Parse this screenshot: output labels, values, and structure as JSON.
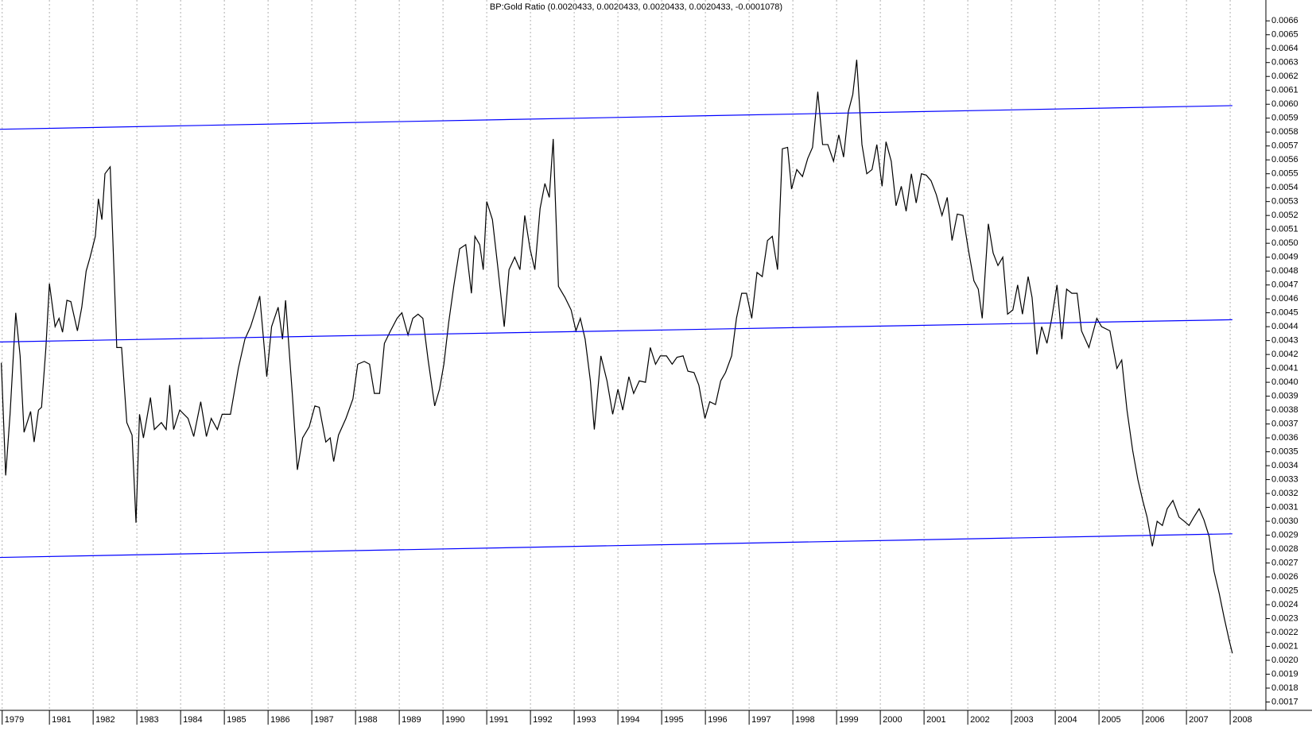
{
  "chart_data": {
    "type": "line",
    "title": "BP:Gold Ratio (0.0020433, 0.0020433, 0.0020433, 0.0020433, -0.0001078)",
    "xlim": [
      1979.87,
      2008.78
    ],
    "ylim": [
      0.00164,
      0.00675
    ],
    "grid": true,
    "xticks": [
      {
        "value": 1979.92,
        "label": "1979"
      },
      1981,
      1982,
      1983,
      1984,
      1985,
      1986,
      1987,
      1988,
      1989,
      1990,
      1991,
      1992,
      1993,
      1994,
      1995,
      1996,
      1997,
      1998,
      1999,
      2000,
      2001,
      2002,
      2003,
      2004,
      2005,
      2006,
      2007,
      2008
    ],
    "yticks": [
      0.0017,
      0.0018,
      0.0019,
      {
        "value": 0.002,
        "label": "0.0020"
      },
      0.0021,
      0.0022,
      0.0023,
      0.0024,
      0.0025,
      0.0026,
      0.0027,
      0.0028,
      0.0029,
      {
        "value": 0.003,
        "label": "0.0030"
      },
      0.0031,
      0.0032,
      0.0033,
      0.0034,
      0.0035,
      0.0036,
      0.0037,
      0.0038,
      0.0039,
      {
        "value": 0.004,
        "label": "0.0040"
      },
      0.0041,
      0.0042,
      0.0043,
      0.0044,
      0.0045,
      0.0046,
      0.0047,
      0.0048,
      0.0049,
      {
        "value": 0.005,
        "label": "0.0050"
      },
      0.0051,
      0.0052,
      0.0053,
      0.0054,
      0.0055,
      0.0056,
      0.0057,
      0.0058,
      0.0059,
      {
        "value": 0.006,
        "label": "0.0060"
      },
      0.0061,
      0.0062,
      0.0063,
      0.0064,
      0.0065,
      0.0066
    ],
    "series": [
      {
        "color": "#000000",
        "x": [
          1979.9,
          1980.0,
          1980.1,
          1980.23,
          1980.33,
          1980.42,
          1980.57,
          1980.65,
          1980.75,
          1980.82,
          1980.92,
          1981.0,
          1981.13,
          1981.22,
          1981.3,
          1981.4,
          1981.49,
          1981.64,
          1981.74,
          1981.84,
          1981.93,
          1982.05,
          1982.12,
          1982.2,
          1982.27,
          1982.39,
          1982.54,
          1982.65,
          1982.77,
          1982.89,
          1982.98,
          1983.06,
          1983.15,
          1983.31,
          1983.4,
          1983.56,
          1983.67,
          1983.75,
          1983.84,
          1983.98,
          1984.17,
          1984.3,
          1984.46,
          1984.59,
          1984.7,
          1984.84,
          1984.95,
          1985.14,
          1985.32,
          1985.47,
          1985.6,
          1985.72,
          1985.81,
          1985.97,
          1986.08,
          1986.23,
          1986.33,
          1986.4,
          1986.56,
          1986.67,
          1986.79,
          1986.94,
          1987.07,
          1987.17,
          1987.32,
          1987.42,
          1987.5,
          1987.61,
          1987.78,
          1987.94,
          1988.05,
          1988.2,
          1988.32,
          1988.43,
          1988.55,
          1988.66,
          1988.8,
          1988.95,
          1989.06,
          1989.2,
          1989.31,
          1989.43,
          1989.54,
          1989.66,
          1989.81,
          1989.92,
          1990.02,
          1990.13,
          1990.25,
          1990.38,
          1990.52,
          1990.65,
          1990.73,
          1990.84,
          1990.92,
          1991.0,
          1991.13,
          1991.26,
          1991.4,
          1991.51,
          1991.64,
          1991.76,
          1991.87,
          1991.99,
          1992.1,
          1992.22,
          1992.33,
          1992.43,
          1992.52,
          1992.64,
          1992.79,
          1992.93,
          1993.04,
          1993.14,
          1993.25,
          1993.37,
          1993.46,
          1993.61,
          1993.75,
          1993.88,
          1994.0,
          1994.11,
          1994.25,
          1994.36,
          1994.49,
          1994.63,
          1994.74,
          1994.86,
          1994.97,
          1995.11,
          1995.24,
          1995.35,
          1995.49,
          1995.6,
          1995.74,
          1995.85,
          1995.99,
          1996.1,
          1996.23,
          1996.35,
          1996.46,
          1996.6,
          1996.71,
          1996.83,
          1996.94,
          1997.06,
          1997.18,
          1997.3,
          1997.42,
          1997.53,
          1997.65,
          1997.76,
          1997.88,
          1997.97,
          1998.09,
          1998.22,
          1998.34,
          1998.45,
          1998.57,
          1998.68,
          1998.8,
          1998.93,
          1999.05,
          1999.16,
          1999.27,
          1999.37,
          1999.46,
          1999.58,
          1999.69,
          1999.81,
          1999.92,
          2000.04,
          2000.13,
          2000.25,
          2000.36,
          2000.48,
          2000.59,
          2000.71,
          2000.82,
          2000.94,
          2001.05,
          2001.16,
          2001.28,
          2001.41,
          2001.53,
          2001.64,
          2001.76,
          2001.89,
          2002.01,
          2002.14,
          2002.24,
          2002.33,
          2002.47,
          2002.58,
          2002.69,
          2002.8,
          2002.91,
          2003.03,
          2003.14,
          2003.25,
          2003.38,
          2003.47,
          2003.58,
          2003.69,
          2003.81,
          2003.92,
          2004.04,
          2004.15,
          2004.26,
          2004.38,
          2004.5,
          2004.6,
          2004.77,
          2004.95,
          2005.06,
          2005.25,
          2005.41,
          2005.52,
          2005.64,
          2005.77,
          2005.89,
          2006.0,
          2006.1,
          2006.22,
          2006.33,
          2006.45,
          2006.56,
          2006.69,
          2006.83,
          2006.95,
          2007.06,
          2007.17,
          2007.29,
          2007.4,
          2007.52,
          2007.63,
          2007.75,
          2007.86,
          2007.98,
          2008.05
        ],
        "values": [
          0.00414,
          0.00333,
          0.00377,
          0.0045,
          0.00419,
          0.00364,
          0.00379,
          0.00357,
          0.0038,
          0.00382,
          0.00425,
          0.00471,
          0.0044,
          0.00446,
          0.00436,
          0.00459,
          0.00458,
          0.00437,
          0.00454,
          0.0048,
          0.0049,
          0.00505,
          0.00532,
          0.00517,
          0.0055,
          0.00555,
          0.00425,
          0.00425,
          0.00371,
          0.00362,
          0.00299,
          0.00377,
          0.0036,
          0.00389,
          0.00366,
          0.00371,
          0.00366,
          0.00398,
          0.00366,
          0.0038,
          0.00374,
          0.00361,
          0.00386,
          0.00361,
          0.00374,
          0.00366,
          0.00377,
          0.00377,
          0.0041,
          0.00431,
          0.0044,
          0.00452,
          0.00462,
          0.00404,
          0.0044,
          0.00454,
          0.00431,
          0.00459,
          0.00389,
          0.00337,
          0.0036,
          0.00368,
          0.00383,
          0.00382,
          0.00357,
          0.0036,
          0.00343,
          0.00362,
          0.00374,
          0.00388,
          0.00413,
          0.00415,
          0.00413,
          0.00392,
          0.00392,
          0.00428,
          0.00437,
          0.00446,
          0.0045,
          0.00434,
          0.00446,
          0.00449,
          0.00446,
          0.00416,
          0.00383,
          0.00395,
          0.00413,
          0.00443,
          0.0047,
          0.00496,
          0.00499,
          0.00464,
          0.00505,
          0.00499,
          0.00481,
          0.0053,
          0.00517,
          0.00481,
          0.0044,
          0.00481,
          0.0049,
          0.00481,
          0.0052,
          0.00496,
          0.00481,
          0.00525,
          0.00543,
          0.00533,
          0.00575,
          0.00469,
          0.00461,
          0.00452,
          0.00437,
          0.00446,
          0.00431,
          0.00401,
          0.00366,
          0.00419,
          0.00401,
          0.00377,
          0.00395,
          0.0038,
          0.00404,
          0.00392,
          0.00401,
          0.004,
          0.00425,
          0.00413,
          0.00419,
          0.00419,
          0.00413,
          0.00418,
          0.00419,
          0.00408,
          0.00407,
          0.00398,
          0.00374,
          0.00386,
          0.00384,
          0.00401,
          0.00407,
          0.00419,
          0.00446,
          0.00464,
          0.00464,
          0.00446,
          0.00479,
          0.00476,
          0.00502,
          0.00505,
          0.00481,
          0.00568,
          0.00569,
          0.00539,
          0.00553,
          0.00548,
          0.00561,
          0.00569,
          0.00609,
          0.00571,
          0.00571,
          0.00559,
          0.00578,
          0.00562,
          0.00595,
          0.00607,
          0.00632,
          0.00571,
          0.0055,
          0.00553,
          0.00571,
          0.00541,
          0.00573,
          0.00559,
          0.00527,
          0.00541,
          0.00523,
          0.0055,
          0.00529,
          0.0055,
          0.00549,
          0.00545,
          0.00535,
          0.0052,
          0.00533,
          0.00502,
          0.00521,
          0.0052,
          0.00496,
          0.00473,
          0.00467,
          0.00446,
          0.00514,
          0.00493,
          0.00484,
          0.0049,
          0.00449,
          0.00452,
          0.0047,
          0.00449,
          0.00476,
          0.00461,
          0.0042,
          0.0044,
          0.00428,
          0.00446,
          0.0047,
          0.00431,
          0.00467,
          0.00464,
          0.00464,
          0.00437,
          0.00425,
          0.00446,
          0.0044,
          0.00437,
          0.0041,
          0.00416,
          0.0038,
          0.00351,
          0.0033,
          0.00315,
          0.00303,
          0.00282,
          0.003,
          0.00297,
          0.00309,
          0.00315,
          0.00303,
          0.003,
          0.00297,
          0.00303,
          0.00309,
          0.00301,
          0.00289,
          0.00264,
          0.00248,
          0.00231,
          0.00214,
          0.00205
        ]
      },
      {
        "color": "#0000ff",
        "x": [
          1979.87,
          2008.05
        ],
        "values": [
          0.00582,
          0.00599
        ]
      },
      {
        "color": "#0000ff",
        "x": [
          1979.87,
          2008.05
        ],
        "values": [
          0.00429,
          0.00445
        ]
      },
      {
        "color": "#0000ff",
        "x": [
          1979.87,
          2008.05
        ],
        "values": [
          0.00274,
          0.00291
        ]
      }
    ]
  }
}
